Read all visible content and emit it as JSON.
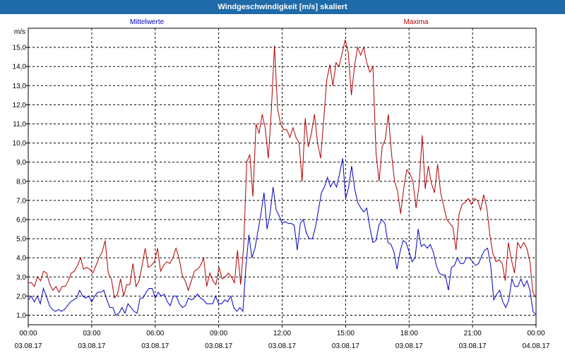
{
  "window": {
    "title": "Windgeschwindigkeit [m/s] skaliert"
  },
  "chart_data": {
    "type": "line",
    "ylabel": "m/s",
    "ylim": [
      0.5,
      16.0
    ],
    "yticks": [
      "1,0",
      "2,0",
      "3,0",
      "4,0",
      "5,0",
      "6,0",
      "7,0",
      "8,0",
      "9,0",
      "10,0",
      "11,0",
      "12,0",
      "13,0",
      "14,0",
      "15,0"
    ],
    "xticks": [
      {
        "time": "00:00",
        "date": "03.08.17"
      },
      {
        "time": "03:00",
        "date": "03.08.17"
      },
      {
        "time": "06:00",
        "date": "03.08.17"
      },
      {
        "time": "09:00",
        "date": "03.08.17"
      },
      {
        "time": "12:00",
        "date": "03.08.17"
      },
      {
        "time": "15:00",
        "date": "03.08.17"
      },
      {
        "time": "18:00",
        "date": "03.08.17"
      },
      {
        "time": "21:00",
        "date": "03.08.17"
      },
      {
        "time": "00:00",
        "date": "04.08.17"
      }
    ],
    "grid": true,
    "series": [
      {
        "name": "Mittelwerte",
        "color": "#0000c0",
        "values": [
          1.8,
          2.0,
          1.7,
          2.0,
          1.6,
          2.4,
          2.0,
          1.5,
          1.3,
          1.2,
          1.3,
          1.2,
          1.3,
          1.5,
          1.7,
          1.8,
          1.9,
          2.3,
          2.0,
          1.9,
          2.0,
          1.7,
          2.0,
          2.2,
          2.2,
          2.3,
          1.8,
          1.4,
          1.4,
          1.0,
          1.1,
          1.4,
          1.1,
          1.6,
          1.4,
          1.2,
          1.1,
          1.9,
          1.9,
          2.2,
          2.4,
          2.4,
          1.9,
          2.2,
          2.0,
          2.1,
          1.7,
          1.5,
          2.0,
          2.0,
          1.6,
          1.4,
          1.5,
          1.9,
          1.8,
          1.9,
          2.1,
          1.9,
          1.8,
          1.6,
          1.6,
          1.6,
          2.0,
          1.6,
          1.6,
          1.8,
          1.7,
          2.0,
          1.4,
          1.2,
          1.4,
          1.2,
          3.5,
          5.2,
          4.0,
          4.5,
          5.4,
          6.3,
          7.4,
          5.5,
          6.3,
          7.7,
          6.5,
          6.2,
          5.8,
          5.9,
          5.8,
          5.8,
          5.7,
          4.4,
          5.8,
          6.0,
          5.3,
          5.0,
          5.0,
          5.6,
          6.5,
          7.4,
          7.7,
          8.2,
          7.7,
          8.0,
          7.7,
          8.4,
          9.2,
          7.1,
          7.7,
          8.8,
          7.6,
          6.9,
          6.6,
          6.4,
          6.6,
          5.6,
          4.8,
          4.9,
          5.7,
          6.0,
          5.8,
          4.8,
          4.7,
          4.3,
          3.4,
          4.3,
          4.9,
          4.8,
          4.3,
          3.8,
          4.0,
          5.5,
          4.6,
          4.7,
          4.5,
          4.7,
          4.3,
          3.6,
          3.2,
          3.1,
          3.1,
          2.3,
          3.5,
          3.6,
          4.0,
          3.7,
          3.7,
          4.0,
          4.0,
          3.8,
          3.6,
          3.7,
          4.1,
          4.4,
          4.5,
          3.6,
          1.8,
          2.1,
          2.3,
          1.7,
          1.4,
          1.8,
          2.9,
          2.5,
          2.5,
          2.9,
          2.5,
          2.8,
          2.3,
          1.2,
          1.0
        ]
      },
      {
        "name": "Maxima",
        "color": "#b00000",
        "values": [
          2.7,
          2.7,
          2.5,
          3.0,
          2.8,
          3.3,
          3.2,
          2.6,
          2.3,
          2.5,
          2.2,
          2.5,
          2.5,
          2.8,
          3.2,
          3.3,
          3.6,
          4.0,
          3.4,
          3.5,
          3.4,
          3.2,
          3.6,
          4.0,
          4.3,
          4.9,
          3.2,
          2.9,
          1.9,
          2.1,
          2.9,
          2.0,
          2.6,
          2.6,
          3.7,
          2.5,
          2.8,
          3.6,
          4.5,
          3.5,
          3.6,
          3.8,
          4.5,
          3.3,
          3.6,
          3.8,
          3.7,
          4.0,
          4.5,
          4.0,
          3.1,
          2.8,
          2.3,
          2.8,
          3.3,
          3.4,
          3.6,
          4.0,
          2.5,
          3.2,
          2.8,
          2.6,
          3.5,
          2.9,
          3.0,
          3.2,
          3.0,
          2.7,
          4.4,
          2.6,
          4.6,
          9.0,
          9.4,
          7.2,
          11.0,
          10.5,
          11.5,
          10.8,
          9.2,
          11.7,
          15.1,
          11.8,
          11.0,
          10.7,
          10.7,
          10.3,
          10.8,
          10.3,
          10.0,
          8.0,
          11.3,
          9.8,
          10.5,
          11.5,
          10.0,
          9.2,
          11.2,
          13.3,
          14.1,
          13.0,
          14.2,
          14.0,
          14.7,
          15.4,
          14.7,
          12.5,
          14.0,
          15.0,
          14.6,
          15.0,
          14.2,
          13.7,
          14.0,
          9.5,
          8.0,
          9.8,
          10.2,
          11.5,
          9.5,
          8.0,
          7.5,
          6.3,
          7.6,
          8.6,
          8.4,
          8.0,
          6.6,
          7.8,
          10.4,
          7.6,
          8.8,
          7.9,
          7.4,
          8.9,
          7.4,
          6.7,
          6.0,
          5.8,
          5.6,
          4.4,
          6.3,
          6.8,
          6.9,
          7.1,
          6.8,
          7.1,
          7.0,
          6.5,
          7.3,
          6.6,
          5.2,
          4.2,
          3.8,
          3.9,
          3.7,
          2.8,
          4.8,
          3.9,
          3.2,
          4.8,
          4.5,
          4.8,
          4.5,
          3.8,
          2.2,
          1.9
        ]
      }
    ]
  }
}
